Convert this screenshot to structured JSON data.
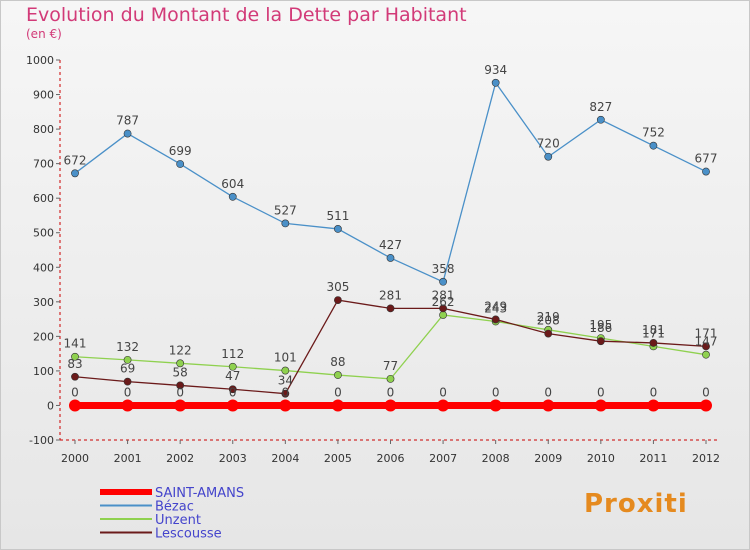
{
  "header": {
    "title": "Evolution du Montant de la Dette par Habitant",
    "subtitle": "(en €)"
  },
  "logo": {
    "text": "Proxiti"
  },
  "colors": {
    "title": "#d23a78",
    "axis": "#cc0000",
    "text": "#444444"
  },
  "chart_data": {
    "type": "line",
    "title": "Evolution du Montant de la Dette par Habitant",
    "subtitle": "(en €)",
    "xlabel": "",
    "ylabel": "",
    "ylim": [
      -100,
      1000
    ],
    "yticks": [
      -100,
      0,
      100,
      200,
      300,
      400,
      500,
      600,
      700,
      800,
      900,
      1000
    ],
    "grid": false,
    "legend": "bottom-left",
    "categories": [
      "2000",
      "2001",
      "2002",
      "2003",
      "2004",
      "2005",
      "2006",
      "2007",
      "2008",
      "2009",
      "2010",
      "2011",
      "2012"
    ],
    "series": [
      {
        "name": "SAINT-AMANS",
        "color": "#ff0000",
        "label_color": "#4444cc",
        "values": [
          0,
          0,
          0,
          0,
          0,
          0,
          0,
          0,
          0,
          0,
          0,
          0,
          0
        ]
      },
      {
        "name": "Bézac",
        "color": "#4a90c8",
        "label_color": "#4444cc",
        "values": [
          672,
          787,
          699,
          604,
          527,
          511,
          427,
          358,
          934,
          720,
          827,
          752,
          677
        ]
      },
      {
        "name": "Unzent",
        "color": "#8fd14f",
        "label_color": "#4444cc",
        "values": [
          141,
          132,
          122,
          112,
          101,
          88,
          77,
          262,
          243,
          219,
          195,
          171,
          147
        ]
      },
      {
        "name": "Lescousse",
        "color": "#6b1a1a",
        "label_color": "#4444cc",
        "values": [
          83,
          69,
          58,
          47,
          34,
          305,
          281,
          281,
          249,
          208,
          186,
          181,
          171
        ]
      }
    ],
    "data_labels": [
      {
        "series": 0,
        "values": [
          "0",
          "0",
          "0",
          "0",
          "0",
          "0",
          "0",
          "0",
          "0",
          "0",
          "0",
          "0",
          "0"
        ]
      },
      {
        "series": 1,
        "values": [
          "672",
          "787",
          "699",
          "604",
          "527",
          "511",
          "427",
          "358",
          "934",
          "720",
          "827",
          "752",
          "677"
        ]
      },
      {
        "series": 2,
        "values": [
          "141",
          "132",
          "122",
          "112",
          "101",
          "88",
          "77",
          "262",
          "243",
          "219",
          "195",
          "171",
          "147"
        ]
      },
      {
        "series": 3,
        "values": [
          "83",
          "69",
          "58",
          "47",
          "34",
          "305",
          "281",
          "281",
          "249",
          "208",
          "186",
          "181",
          "171"
        ]
      }
    ]
  }
}
